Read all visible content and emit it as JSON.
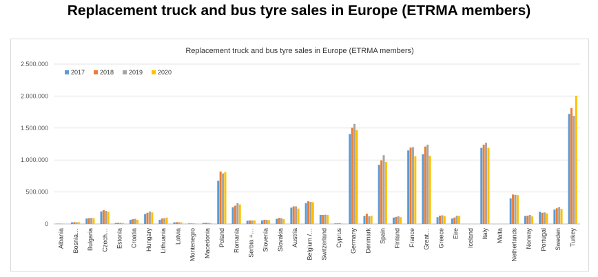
{
  "page_title": "Replacement truck and bus tyre sales in Europe (ETRMA members)",
  "chart_data": {
    "type": "bar",
    "title": "Replacement truck and bus tyre sales in Europe (ETRMA members)",
    "xlabel": "",
    "ylabel": "",
    "ylim": [
      0,
      2500000
    ],
    "yticks": [
      0,
      500000,
      1000000,
      1500000,
      2000000,
      2500000
    ],
    "ytick_labels": [
      "0",
      "500.000",
      "1.000.000",
      "1.500.000",
      "2.000.000",
      "2.500.000"
    ],
    "grid": true,
    "legend_position": "top-left",
    "categories": [
      "Albania",
      "Bosnia…",
      "Bulgaria",
      "Czech…",
      "Estonia",
      "Croatia",
      "Hungary",
      "Lithuania",
      "Latvia",
      "Montenegro",
      "Macedonia",
      "Poland",
      "Romania",
      "Serbia +…",
      "Slovenia",
      "Slovakia",
      "Austria",
      "Belgium /…",
      "Switzerland",
      "Cyprus",
      "Germany",
      "Denmark",
      "Spain",
      "Finland",
      "France",
      "Great…",
      "Greece",
      "Eire",
      "Iceland",
      "Italy",
      "Malta",
      "Netherlands",
      "Norway",
      "Portugal",
      "Sweden",
      "Turkey"
    ],
    "series": [
      {
        "name": "2017",
        "color": "#5b9bd5",
        "values": [
          5000,
          25000,
          85000,
          195000,
          15000,
          65000,
          155000,
          65000,
          25000,
          8000,
          15000,
          675000,
          260000,
          50000,
          55000,
          80000,
          255000,
          325000,
          140000,
          8000,
          1405000,
          125000,
          925000,
          100000,
          1150000,
          1090000,
          105000,
          85000,
          0,
          1190000,
          0,
          400000,
          125000,
          190000,
          225000,
          1720000
        ]
      },
      {
        "name": "2018",
        "color": "#ed7d31",
        "values": [
          5000,
          28000,
          90000,
          215000,
          18000,
          75000,
          175000,
          85000,
          28000,
          8000,
          18000,
          820000,
          285000,
          55000,
          65000,
          95000,
          275000,
          355000,
          140000,
          10000,
          1505000,
          160000,
          995000,
          110000,
          1195000,
          1210000,
          130000,
          100000,
          0,
          1240000,
          0,
          460000,
          130000,
          175000,
          245000,
          1810000
        ]
      },
      {
        "name": "2019",
        "color": "#a5a5a5",
        "values": [
          5000,
          25000,
          95000,
          205000,
          16000,
          80000,
          195000,
          90000,
          26000,
          8000,
          16000,
          790000,
          325000,
          55000,
          65000,
          90000,
          275000,
          345000,
          145000,
          12000,
          1565000,
          120000,
          1075000,
          120000,
          1200000,
          1240000,
          135000,
          130000,
          0,
          1270000,
          0,
          455000,
          140000,
          180000,
          265000,
          1690000
        ]
      },
      {
        "name": "2020",
        "color": "#ffc000",
        "values": [
          5000,
          28000,
          90000,
          190000,
          15000,
          65000,
          180000,
          100000,
          25000,
          6000,
          15000,
          810000,
          305000,
          55000,
          60000,
          75000,
          240000,
          340000,
          140000,
          6000,
          1465000,
          130000,
          970000,
          105000,
          1060000,
          1065000,
          125000,
          125000,
          0,
          1190000,
          0,
          450000,
          120000,
          165000,
          235000,
          2005000
        ]
      }
    ]
  }
}
